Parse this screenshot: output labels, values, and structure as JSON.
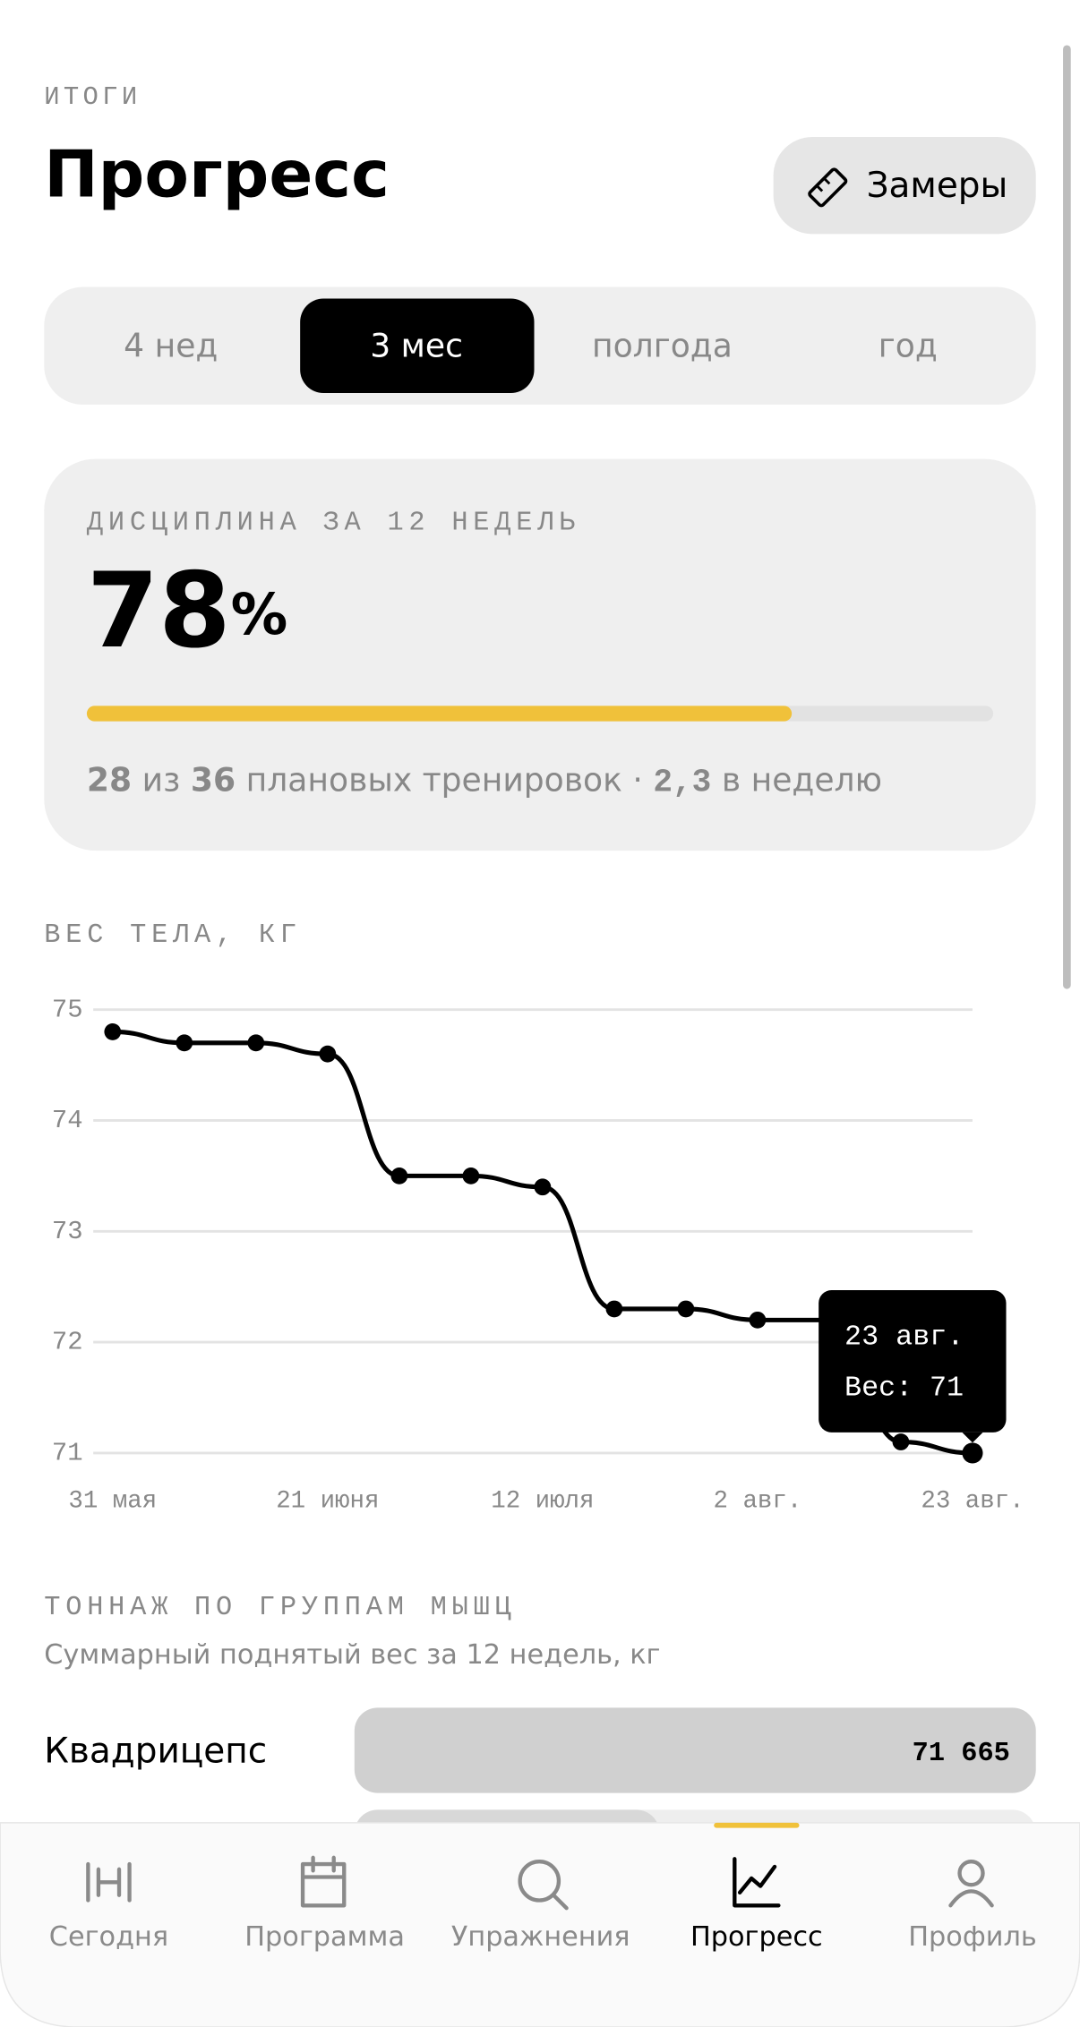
{
  "header": {
    "overline": "ИТОГИ",
    "title": "Прогресс",
    "button": "Замеры"
  },
  "periods": {
    "items": [
      "4 нед",
      "3 мес",
      "полгода",
      "год"
    ],
    "active": 1
  },
  "discipline": {
    "title": "ДИСЦИПЛИНА ЗА 12 НЕДЕЛЬ",
    "percent": 78,
    "percent_sign": "%",
    "done": 28,
    "of": "из",
    "planned": 36,
    "planned_text": "плановых тренировок ·",
    "per_week": "2,3",
    "per_week_text": "в неделю"
  },
  "weight_chart": {
    "type": "line",
    "title": "ВЕС ТЕЛА, КГ",
    "x": [
      "31 мая",
      null,
      null,
      "21 июня",
      null,
      null,
      "12 июля",
      null,
      null,
      "2 авг.",
      null,
      null,
      "23 авг."
    ],
    "values": [
      74.8,
      74.7,
      74.7,
      74.6,
      73.5,
      73.5,
      73.4,
      72.3,
      72.3,
      72.2,
      72.2,
      71.1,
      71.0
    ],
    "color": "#000000",
    "ylim": [
      71,
      75
    ],
    "yticks": [
      75,
      74,
      73,
      72,
      71
    ],
    "grid": true,
    "tooltip": {
      "date": "23 авг.",
      "label": "Вес:"
    }
  },
  "tonnage": {
    "title": "ТОННАЖ ПО ГРУППАМ МЫШЦ",
    "subtitle": "Суммарный поднятый вес за 12 недель, кг",
    "rows": [
      {
        "name": "Квадрицепс",
        "value": {
          "value": 71665,
          "label": "71 665"
        }
      }
    ]
  },
  "nav": {
    "items": [
      "Сегодня",
      "Программа",
      "Упражнения",
      "Прогресс",
      "Профиль"
    ],
    "active": 3
  }
}
